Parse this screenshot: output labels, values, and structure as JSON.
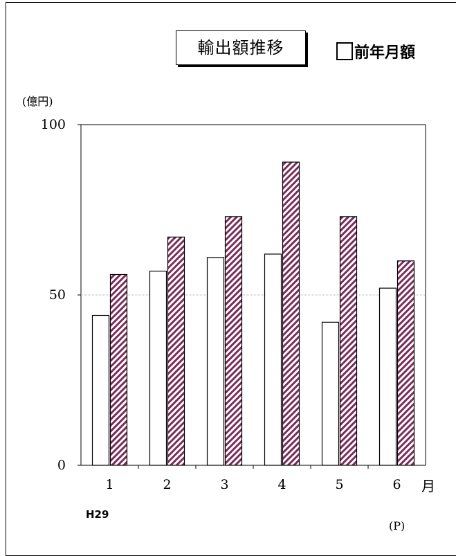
{
  "title": "輸出額推移",
  "legend": {
    "prev_year_label": "前年月額"
  },
  "y_unit": "(億円)",
  "x_unit": "月",
  "year_label": "H29",
  "preliminary_note": "(P)",
  "colors": {
    "prev_year_fill": "#ffffff",
    "current_hatch": "#7b2c5a",
    "gridline": "#b0b0b0"
  },
  "chart_data": {
    "type": "bar",
    "categories": [
      "1",
      "2",
      "3",
      "4",
      "5",
      "6"
    ],
    "series": [
      {
        "name": "前年月額",
        "values": [
          44,
          57,
          61,
          62,
          42,
          52
        ]
      },
      {
        "values": [
          56,
          67,
          73,
          89,
          73,
          60
        ]
      }
    ],
    "ylim": [
      0,
      100
    ],
    "yticks": [
      0,
      50,
      100
    ],
    "grid": "y at 50",
    "ylabel": "(億円)",
    "xlabel": "月"
  }
}
